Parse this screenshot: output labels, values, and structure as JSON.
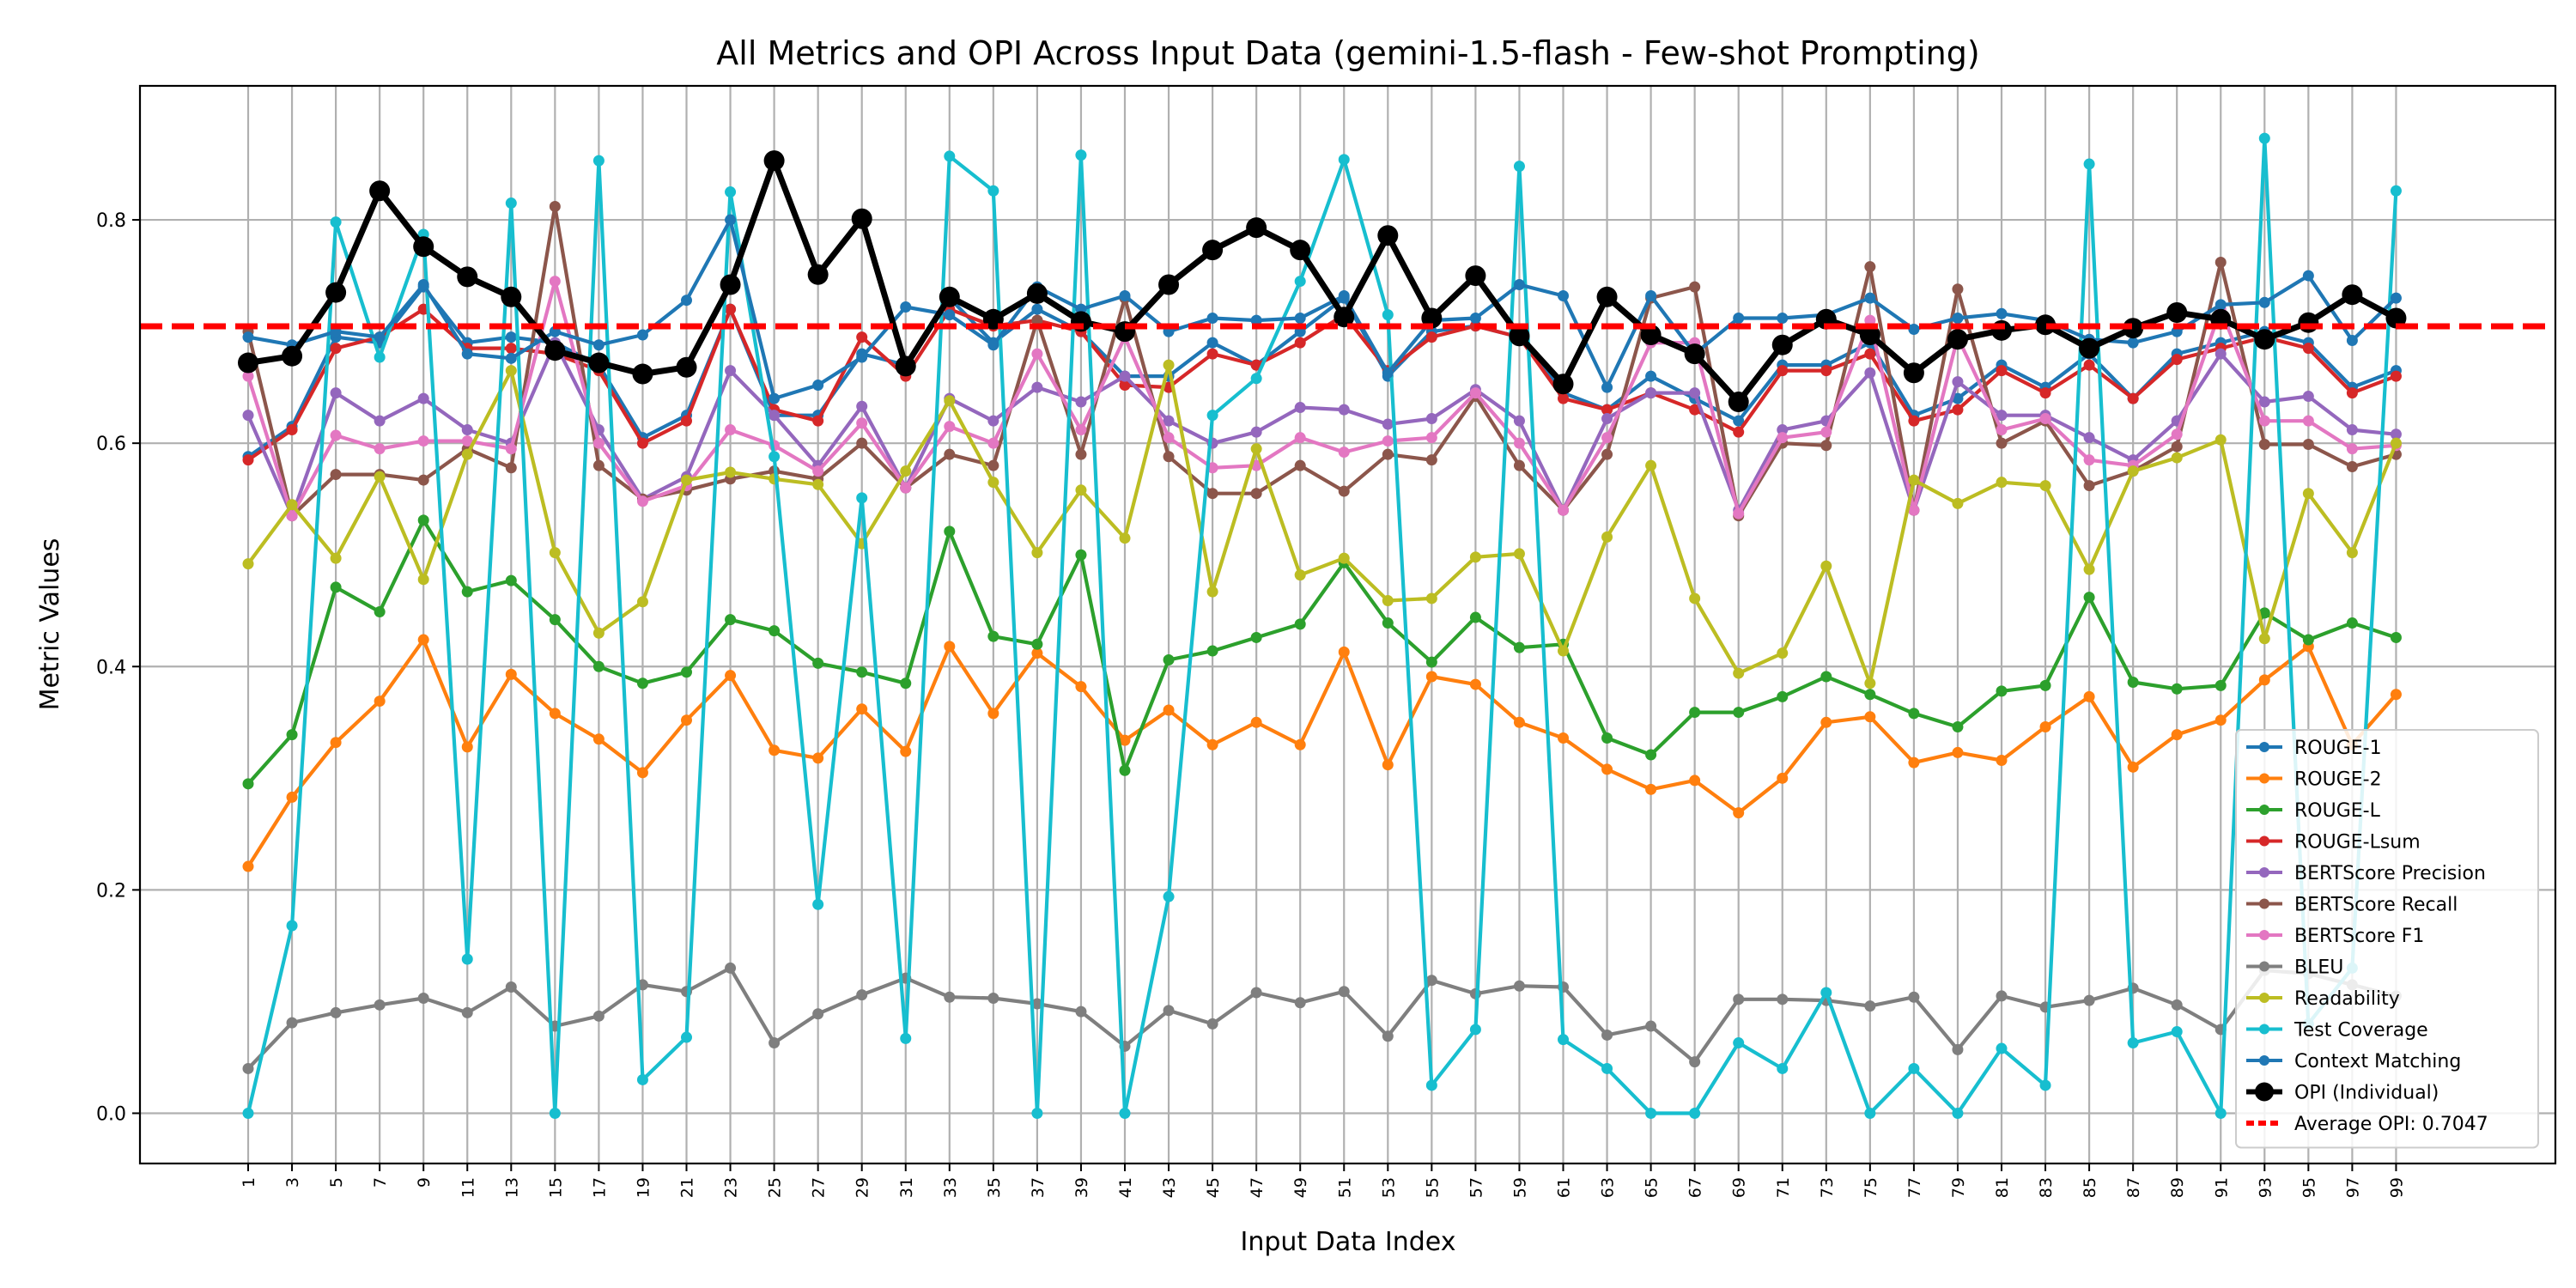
{
  "chart_data": {
    "type": "line",
    "title": "All Metrics and OPI Across Input Data (gemini-1.5-flash - Few-shot Prompting)",
    "xlabel": "Input Data Index",
    "ylabel": "Metric Values",
    "ylim": [
      -0.045,
      0.92
    ],
    "yticks": [
      "0.0",
      "0.2",
      "0.4",
      "0.6",
      "0.8"
    ],
    "grid": true,
    "legend_position": "bottom-right",
    "x": [
      1,
      3,
      5,
      7,
      9,
      11,
      13,
      15,
      17,
      19,
      21,
      23,
      25,
      27,
      29,
      31,
      33,
      35,
      37,
      39,
      41,
      43,
      45,
      47,
      49,
      51,
      53,
      55,
      57,
      59,
      61,
      63,
      65,
      67,
      69,
      71,
      73,
      75,
      77,
      79,
      81,
      83,
      85,
      87,
      89,
      91,
      93,
      95,
      97,
      99
    ],
    "series": [
      {
        "name": "ROUGE-1",
        "color": "#1f77b4",
        "values": [
          0.588,
          0.615,
          0.695,
          0.69,
          0.74,
          0.69,
          0.695,
          0.69,
          0.67,
          0.605,
          0.625,
          0.72,
          0.625,
          0.625,
          0.68,
          0.67,
          0.73,
          0.69,
          0.72,
          0.7,
          0.66,
          0.66,
          0.69,
          0.67,
          0.7,
          0.73,
          0.66,
          0.7,
          0.705,
          0.695,
          0.645,
          0.63,
          0.66,
          0.64,
          0.62,
          0.67,
          0.67,
          0.69,
          0.625,
          0.64,
          0.67,
          0.65,
          0.68,
          0.64,
          0.68,
          0.69,
          0.7,
          0.69,
          0.65,
          0.665
        ]
      },
      {
        "name": "ROUGE-2",
        "color": "#ff7f0e",
        "values": [
          0.221,
          0.283,
          0.332,
          0.369,
          0.424,
          0.328,
          0.393,
          0.358,
          0.335,
          0.305,
          0.352,
          0.392,
          0.325,
          0.318,
          0.362,
          0.324,
          0.418,
          0.358,
          0.412,
          0.382,
          0.334,
          0.361,
          0.33,
          0.35,
          0.33,
          0.413,
          0.312,
          0.391,
          0.384,
          0.35,
          0.336,
          0.308,
          0.29,
          0.298,
          0.269,
          0.3,
          0.35,
          0.355,
          0.314,
          0.323,
          0.316,
          0.346,
          0.373,
          0.31,
          0.339,
          0.352,
          0.388,
          0.418,
          0.33,
          0.375
        ]
      },
      {
        "name": "ROUGE-L",
        "color": "#2ca02c",
        "values": [
          0.295,
          0.339,
          0.471,
          0.449,
          0.531,
          0.467,
          0.477,
          0.442,
          0.4,
          0.385,
          0.395,
          0.442,
          0.432,
          0.403,
          0.395,
          0.385,
          0.521,
          0.427,
          0.42,
          0.5,
          0.307,
          0.406,
          0.414,
          0.426,
          0.438,
          0.493,
          0.439,
          0.404,
          0.444,
          0.417,
          0.42,
          0.336,
          0.321,
          0.359,
          0.359,
          0.373,
          0.391,
          0.375,
          0.358,
          0.346,
          0.378,
          0.383,
          0.462,
          0.386,
          0.38,
          0.383,
          0.448,
          0.424,
          0.439,
          0.426
        ]
      },
      {
        "name": "ROUGE-Lsum",
        "color": "#d62728",
        "values": [
          0.585,
          0.612,
          0.685,
          0.695,
          0.72,
          0.685,
          0.685,
          0.68,
          0.665,
          0.6,
          0.62,
          0.72,
          0.63,
          0.62,
          0.695,
          0.66,
          0.72,
          0.705,
          0.71,
          0.7,
          0.652,
          0.65,
          0.68,
          0.67,
          0.69,
          0.715,
          0.665,
          0.695,
          0.705,
          0.695,
          0.64,
          0.63,
          0.645,
          0.63,
          0.61,
          0.665,
          0.665,
          0.68,
          0.62,
          0.63,
          0.665,
          0.645,
          0.67,
          0.64,
          0.675,
          0.685,
          0.695,
          0.685,
          0.645,
          0.66
        ]
      },
      {
        "name": "BERTScore Precision",
        "color": "#9467bd",
        "values": [
          0.625,
          0.535,
          0.645,
          0.62,
          0.64,
          0.612,
          0.6,
          0.69,
          0.612,
          0.55,
          0.57,
          0.665,
          0.625,
          0.58,
          0.633,
          0.56,
          0.64,
          0.62,
          0.65,
          0.637,
          0.66,
          0.62,
          0.6,
          0.61,
          0.632,
          0.63,
          0.617,
          0.622,
          0.648,
          0.62,
          0.54,
          0.622,
          0.645,
          0.645,
          0.54,
          0.612,
          0.62,
          0.663,
          0.54,
          0.655,
          0.625,
          0.625,
          0.605,
          0.585,
          0.62,
          0.68,
          0.637,
          0.642,
          0.612,
          0.608
        ]
      },
      {
        "name": "BERTScore Recall",
        "color": "#8c564b",
        "values": [
          0.7,
          0.535,
          0.572,
          0.572,
          0.567,
          0.595,
          0.578,
          0.812,
          0.58,
          0.55,
          0.558,
          0.568,
          0.575,
          0.568,
          0.6,
          0.56,
          0.59,
          0.58,
          0.71,
          0.59,
          0.73,
          0.588,
          0.555,
          0.555,
          0.58,
          0.557,
          0.59,
          0.585,
          0.642,
          0.58,
          0.54,
          0.59,
          0.73,
          0.74,
          0.535,
          0.6,
          0.598,
          0.758,
          0.54,
          0.738,
          0.6,
          0.62,
          0.562,
          0.575,
          0.597,
          0.762,
          0.599,
          0.599,
          0.579,
          0.59
        ]
      },
      {
        "name": "BERTScore F1",
        "color": "#e377c2",
        "values": [
          0.66,
          0.535,
          0.607,
          0.595,
          0.602,
          0.602,
          0.595,
          0.745,
          0.6,
          0.548,
          0.562,
          0.612,
          0.598,
          0.575,
          0.618,
          0.56,
          0.615,
          0.6,
          0.68,
          0.612,
          0.695,
          0.605,
          0.578,
          0.58,
          0.605,
          0.592,
          0.602,
          0.605,
          0.645,
          0.6,
          0.54,
          0.605,
          0.69,
          0.69,
          0.537,
          0.605,
          0.61,
          0.71,
          0.54,
          0.695,
          0.612,
          0.622,
          0.585,
          0.58,
          0.608,
          0.72,
          0.62,
          0.62,
          0.595,
          0.598
        ]
      },
      {
        "name": "BLEU",
        "color": "#7f7f7f",
        "values": [
          0.04,
          0.081,
          0.09,
          0.097,
          0.103,
          0.09,
          0.113,
          0.078,
          0.087,
          0.115,
          0.109,
          0.13,
          0.063,
          0.089,
          0.106,
          0.121,
          0.104,
          0.103,
          0.098,
          0.091,
          0.06,
          0.092,
          0.08,
          0.108,
          0.099,
          0.109,
          0.069,
          0.119,
          0.107,
          0.114,
          0.113,
          0.07,
          0.078,
          0.046,
          0.102,
          0.102,
          0.101,
          0.096,
          0.104,
          0.057,
          0.105,
          0.095,
          0.101,
          0.112,
          0.097,
          0.075,
          0.128,
          0.125,
          0.115,
          0.105
        ]
      },
      {
        "name": "Readability",
        "color": "#bcbd22",
        "values": [
          0.492,
          0.545,
          0.497,
          0.57,
          0.478,
          0.59,
          0.665,
          0.502,
          0.43,
          0.458,
          0.567,
          0.574,
          0.568,
          0.563,
          0.51,
          0.575,
          0.638,
          0.565,
          0.502,
          0.558,
          0.515,
          0.67,
          0.467,
          0.595,
          0.482,
          0.497,
          0.459,
          0.461,
          0.498,
          0.501,
          0.414,
          0.516,
          0.58,
          0.461,
          0.394,
          0.412,
          0.49,
          0.385,
          0.567,
          0.546,
          0.565,
          0.562,
          0.487,
          0.575,
          0.587,
          0.603,
          0.425,
          0.555,
          0.502,
          0.6
        ]
      },
      {
        "name": "Test Coverage",
        "color": "#17becf",
        "values": [
          0.0,
          0.168,
          0.798,
          0.677,
          0.787,
          0.138,
          0.815,
          0.0,
          0.853,
          0.03,
          0.068,
          0.825,
          0.588,
          0.187,
          0.551,
          0.067,
          0.857,
          0.826,
          0.0,
          0.858,
          0.0,
          0.194,
          0.625,
          0.658,
          0.745,
          0.854,
          0.715,
          0.025,
          0.075,
          0.848,
          0.066,
          0.04,
          0.0,
          0.0,
          0.063,
          0.04,
          0.108,
          0.0,
          0.04,
          0.0,
          0.058,
          0.025,
          0.85,
          0.063,
          0.073,
          0.0,
          0.873,
          0.08,
          0.13,
          0.826
        ]
      },
      {
        "name": "Context Matching",
        "color": "#1f77b4",
        "values": [
          0.695,
          0.688,
          0.7,
          0.695,
          0.742,
          0.68,
          0.676,
          0.7,
          0.688,
          0.697,
          0.728,
          0.8,
          0.64,
          0.652,
          0.677,
          0.722,
          0.715,
          0.688,
          0.74,
          0.72,
          0.732,
          0.7,
          0.712,
          0.71,
          0.712,
          0.732,
          0.663,
          0.71,
          0.712,
          0.742,
          0.732,
          0.65,
          0.732,
          0.68,
          0.712,
          0.712,
          0.715,
          0.73,
          0.702,
          0.712,
          0.716,
          0.71,
          0.693,
          0.69,
          0.7,
          0.724,
          0.726,
          0.75,
          0.692,
          0.73
        ]
      },
      {
        "name": "OPI (Individual)",
        "color": "#000000",
        "values": [
          0.672,
          0.678,
          0.735,
          0.826,
          0.776,
          0.749,
          0.731,
          0.683,
          0.672,
          0.662,
          0.668,
          0.742,
          0.853,
          0.751,
          0.801,
          0.669,
          0.731,
          0.711,
          0.734,
          0.709,
          0.7,
          0.742,
          0.773,
          0.793,
          0.773,
          0.713,
          0.786,
          0.712,
          0.75,
          0.696,
          0.653,
          0.731,
          0.697,
          0.68,
          0.637,
          0.688,
          0.711,
          0.697,
          0.663,
          0.693,
          0.701,
          0.706,
          0.685,
          0.703,
          0.717,
          0.711,
          0.693,
          0.708,
          0.733,
          0.712
        ]
      }
    ],
    "average_line": {
      "label": "Average OPI: 0.7047",
      "value": 0.7047,
      "color": "#ff0000"
    }
  }
}
